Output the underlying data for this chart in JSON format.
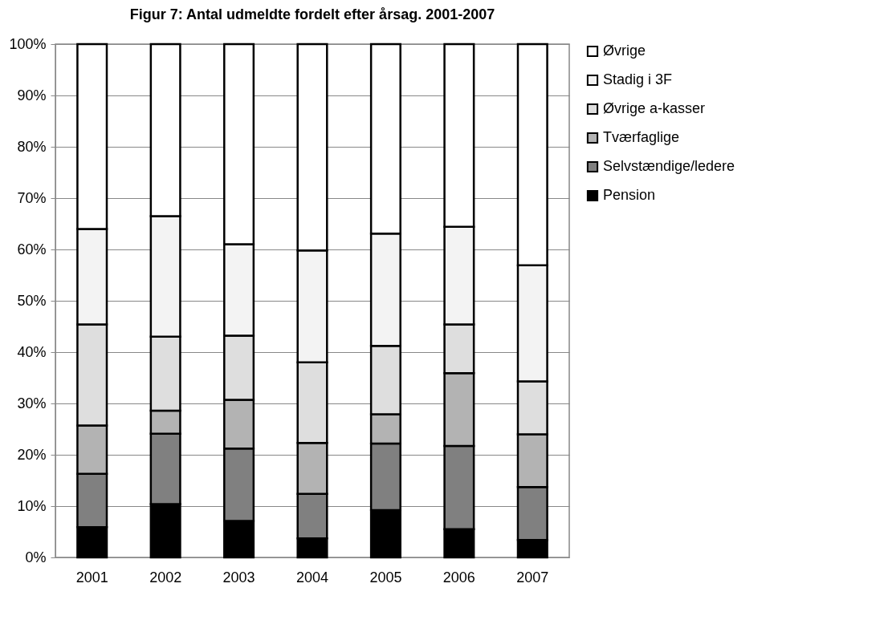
{
  "chart_data": {
    "type": "bar",
    "title": "Figur 7: Antal udmeldte fordelt efter årsag. 2001-2007",
    "stacked": true,
    "categories": [
      "2001",
      "2002",
      "2003",
      "2004",
      "2005",
      "2006",
      "2007"
    ],
    "series": [
      {
        "name": "Pension",
        "color": "#000000",
        "values": [
          5.9,
          10.4,
          7.1,
          3.7,
          9.2,
          5.5,
          3.4
        ]
      },
      {
        "name": "Selvstændige/ledere",
        "color": "#808080",
        "values": [
          10.4,
          13.7,
          14.1,
          8.7,
          13.0,
          16.2,
          10.3
        ]
      },
      {
        "name": "Tværfaglige",
        "color": "#b3b3b3",
        "values": [
          9.4,
          4.5,
          9.5,
          9.9,
          5.7,
          14.2,
          10.3
        ]
      },
      {
        "name": "Øvrige a-kasser",
        "color": "#dedede",
        "values": [
          19.7,
          14.4,
          12.5,
          15.7,
          13.3,
          9.5,
          10.3
        ]
      },
      {
        "name": "Stadig i 3F",
        "color": "#f3f3f3",
        "values": [
          18.6,
          23.5,
          17.8,
          21.8,
          21.9,
          19.0,
          22.6
        ]
      },
      {
        "name": "Øvrige",
        "color": "#ffffff",
        "values": [
          36.0,
          33.5,
          39.0,
          40.2,
          36.9,
          35.6,
          43.1
        ]
      }
    ],
    "ylim": [
      0,
      100
    ],
    "yticks": [
      {
        "value": 0,
        "label": "0%"
      },
      {
        "value": 10,
        "label": "10%"
      },
      {
        "value": 20,
        "label": "20%"
      },
      {
        "value": 30,
        "label": "30%"
      },
      {
        "value": 40,
        "label": "40%"
      },
      {
        "value": 50,
        "label": "50%"
      },
      {
        "value": 60,
        "label": "60%"
      },
      {
        "value": 70,
        "label": "70%"
      },
      {
        "value": 80,
        "label": "80%"
      },
      {
        "value": 90,
        "label": "90%"
      },
      {
        "value": 100,
        "label": "100%"
      }
    ],
    "grid": "y",
    "legend": "right"
  }
}
